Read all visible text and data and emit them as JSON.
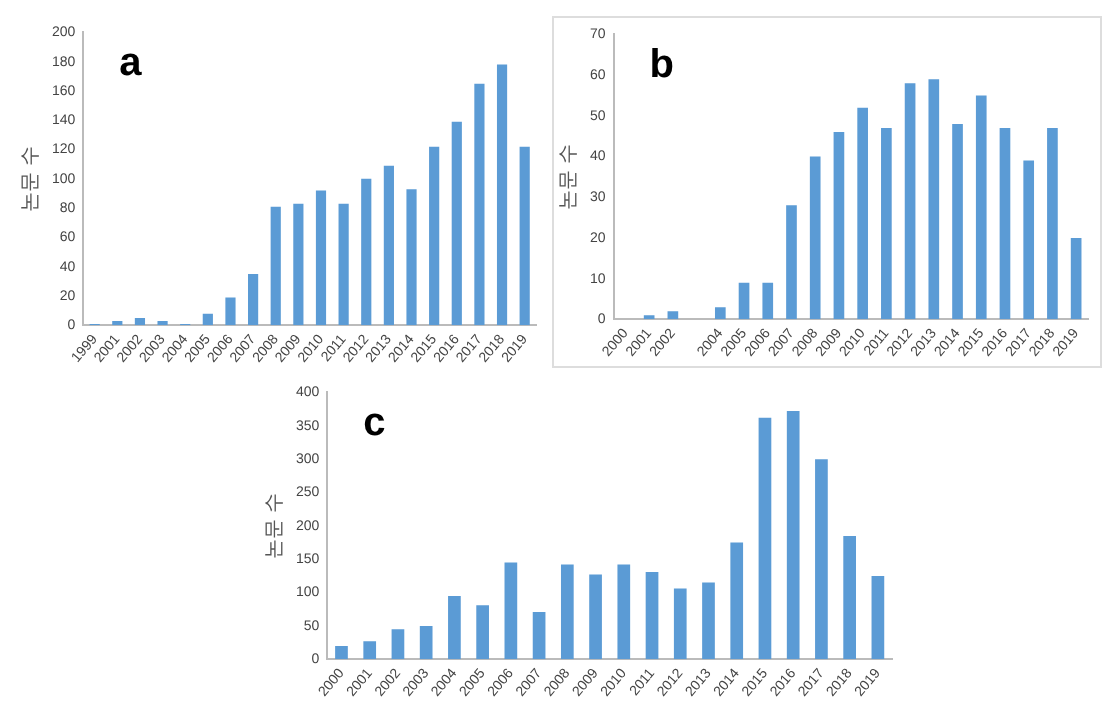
{
  "chart_data": [
    {
      "type": "bar",
      "title": "a",
      "ylabel": "논문 수",
      "categories": [
        "1999",
        "2001",
        "2002",
        "2003",
        "2004",
        "2005",
        "2006",
        "2007",
        "2008",
        "2009",
        "2010",
        "2011",
        "2012",
        "2013",
        "2014",
        "2015",
        "2016",
        "2017",
        "2018",
        "2019"
      ],
      "values": [
        1,
        3,
        5,
        3,
        1,
        8,
        19,
        35,
        81,
        83,
        92,
        83,
        100,
        109,
        93,
        122,
        139,
        165,
        178,
        122
      ],
      "color": "#5b9bd5",
      "ylim": [
        0,
        200
      ],
      "yticks": [
        0,
        20,
        40,
        60,
        80,
        100,
        120,
        140,
        160,
        180,
        200
      ],
      "grid": false
    },
    {
      "type": "bar",
      "title": "b",
      "ylabel": "논문 수",
      "categories": [
        "2000",
        "2001",
        "2002",
        null,
        "2004",
        "2005",
        "2006",
        "2007",
        "2008",
        "2009",
        "2010",
        "2011",
        "2012",
        "2013",
        "2014",
        "2015",
        "2016",
        "2017",
        "2018",
        "2019"
      ],
      "values": [
        0,
        1,
        2,
        null,
        3,
        9,
        9,
        28,
        40,
        46,
        52,
        47,
        58,
        59,
        48,
        55,
        47,
        39,
        47,
        20
      ],
      "color": "#5b9bd5",
      "ylim": [
        0,
        70
      ],
      "yticks": [
        0,
        10,
        20,
        30,
        40,
        50,
        60,
        70
      ],
      "grid": false
    },
    {
      "type": "bar",
      "title": "c",
      "ylabel": "논문 수",
      "categories": [
        "2000",
        "2001",
        "2002",
        "2003",
        "2004",
        "2005",
        "2006",
        "2007",
        "2008",
        "2009",
        "2010",
        "2011",
        "2012",
        "2013",
        "2014",
        "2015",
        "2016",
        "2017",
        "2018",
        "2019"
      ],
      "values": [
        20,
        27,
        45,
        50,
        95,
        81,
        145,
        71,
        142,
        127,
        142,
        131,
        106,
        115,
        175,
        362,
        372,
        300,
        185,
        125
      ],
      "color": "#5b9bd5",
      "ylim": [
        0,
        400
      ],
      "yticks": [
        0,
        50,
        100,
        150,
        200,
        250,
        300,
        350,
        400
      ],
      "grid": false
    }
  ]
}
